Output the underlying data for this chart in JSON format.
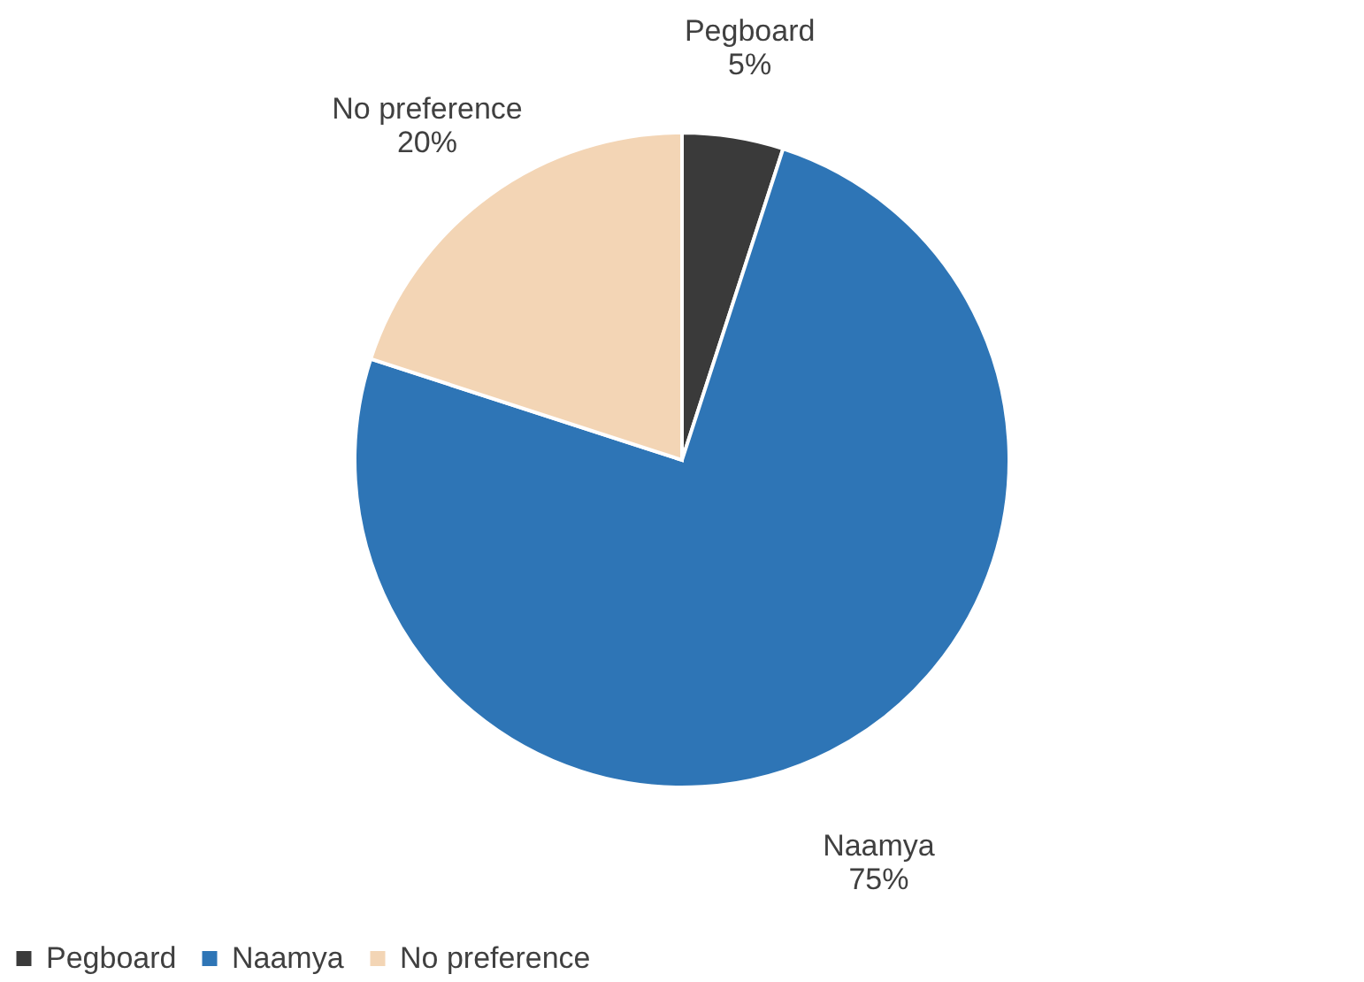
{
  "chart_data": {
    "type": "pie",
    "categories": [
      "Pegboard",
      "Naamya",
      "No preference"
    ],
    "values": [
      5,
      75,
      20
    ],
    "value_labels": [
      "5%",
      "75%",
      "20%"
    ],
    "colors": [
      "#3a3a3a",
      "#2e75b6",
      "#f3d5b5"
    ],
    "legend": "bottom"
  }
}
